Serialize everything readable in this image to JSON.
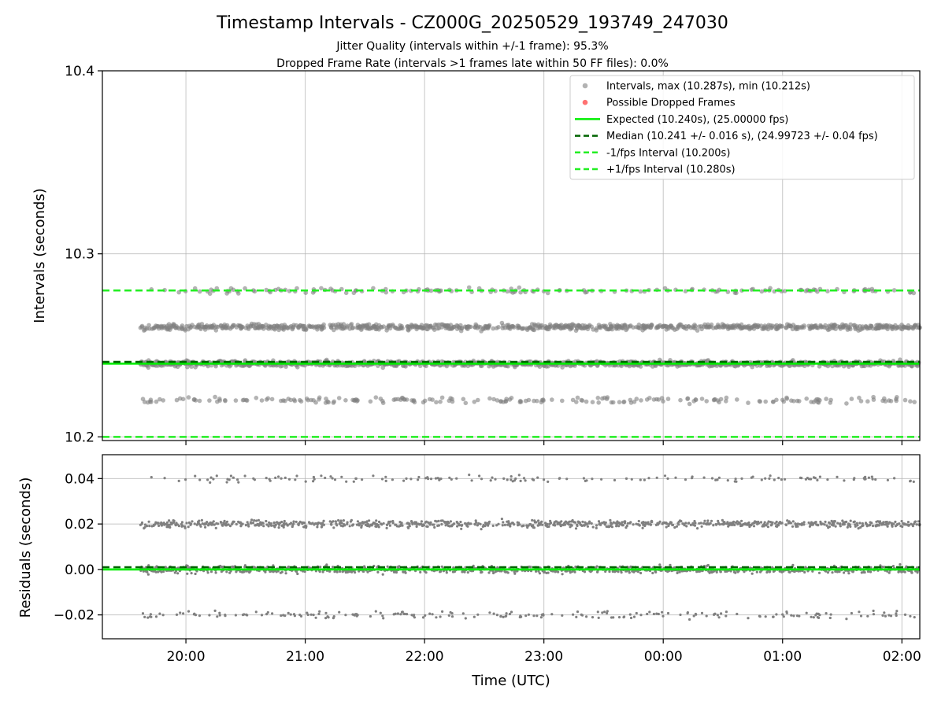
{
  "title": "Timestamp Intervals - CZ000G_20250529_193749_247030",
  "subtitle_lines": [
    "Jitter Quality (intervals within +/-1 frame): 95.3%",
    "Dropped Frame Rate (intervals >1 frames late within 50 FF files): 0.0%"
  ],
  "colors": {
    "points": "#808080",
    "dropped": "#ff4d4d",
    "expected": "#00ee00",
    "median": "#006400",
    "interval": "#22ee22",
    "grid": "#b0b0b0"
  },
  "chart_data": [
    {
      "type": "scatter",
      "ylabel": "Intervals (seconds)",
      "xlim": [
        "19:18",
        "02:09"
      ],
      "ylim": [
        10.198,
        10.4
      ],
      "y_ticks": [
        "10.2",
        "10.3",
        "10.4"
      ],
      "grid": true,
      "legend_position": "top-right",
      "legend": [
        "Intervals, max (10.287s), min (10.212s)",
        "Possible Dropped Frames",
        "Expected (10.240s), (25.00000 fps)",
        "Median (10.241 +/- 0.016 s), (24.99723 +/- 0.04 fps)",
        "-1/fps Interval (10.200s)",
        "+1/fps Interval (10.280s)"
      ],
      "reference_lines": {
        "expected": 10.24,
        "median": 10.241,
        "minus_interval": 10.2,
        "plus_interval": 10.28
      },
      "point_levels": [
        {
          "value": 10.22,
          "share": 0.09
        },
        {
          "value": 10.24,
          "share": 0.46
        },
        {
          "value": 10.26,
          "share": 0.38
        },
        {
          "value": 10.28,
          "share": 0.07
        }
      ],
      "x_range_data": [
        "19:37",
        "02:09"
      ]
    },
    {
      "type": "scatter",
      "ylabel": "Residuals (seconds)",
      "xlabel": "Time (UTC)",
      "xlim": [
        "19:18",
        "02:09"
      ],
      "ylim": [
        -0.0305,
        0.0505
      ],
      "y_ticks": [
        "−0.02",
        "0.00",
        "0.02",
        "0.04"
      ],
      "x_ticks": [
        "20:00",
        "21:00",
        "22:00",
        "23:00",
        "00:00",
        "01:00",
        "02:00"
      ],
      "grid": true,
      "reference_lines": {
        "expected": 0.0,
        "median": 0.001
      },
      "point_levels": [
        {
          "value": -0.02,
          "share": 0.09
        },
        {
          "value": 0.0,
          "share": 0.46
        },
        {
          "value": 0.02,
          "share": 0.38
        },
        {
          "value": 0.04,
          "share": 0.07
        }
      ]
    }
  ]
}
